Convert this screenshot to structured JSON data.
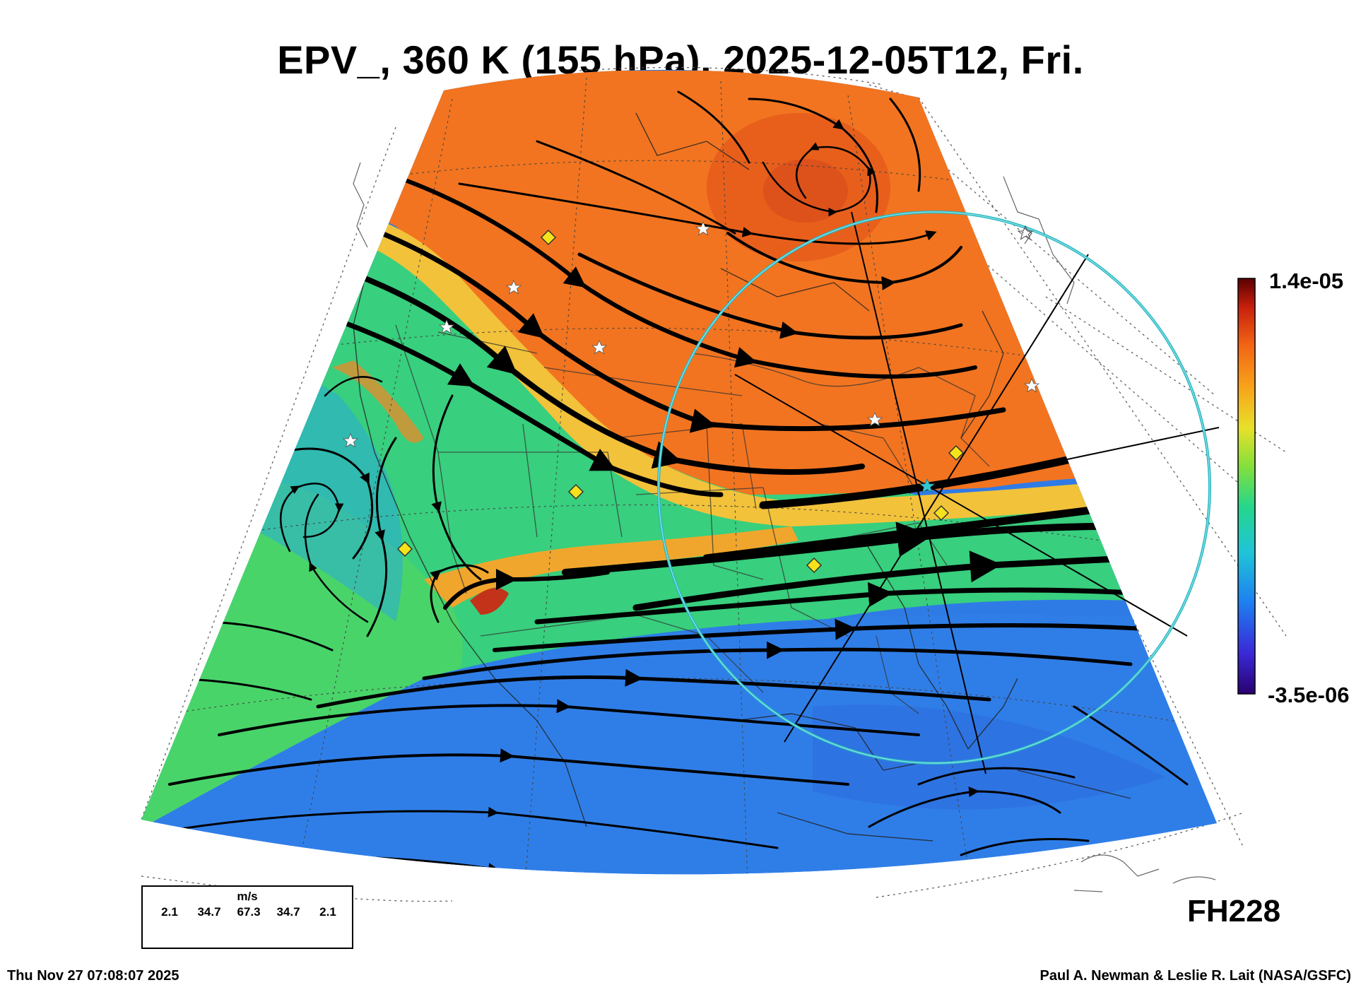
{
  "title": "EPV_, 360 K (155 hPa), 2025-12-05T12, Fri.",
  "colorbar": {
    "max_label": "1.4e-05",
    "min_label": "-3.5e-06",
    "colors": [
      "#2a0070",
      "#3a2ad8",
      "#1e7ff0",
      "#1fc4d8",
      "#25d68c",
      "#86e03a",
      "#e8e02a",
      "#f8a21a",
      "#f26414",
      "#c8200c",
      "#5a0000"
    ]
  },
  "forecast_hour": "FH228",
  "wind_legend": {
    "units": "m/s",
    "speeds": [
      "2.1",
      "34.7",
      "67.3",
      "34.7",
      "2.1"
    ]
  },
  "timestamp": "Thu Nov 27 07:08:07 2025",
  "credit": "Paul A. Newman & Leslie R. Lait (NASA/GSFC)",
  "map": {
    "field": "EPV_",
    "isentropic_level": "360 K",
    "pressure": "155 hPa",
    "valid_time": "2025-12-05T12",
    "fill_colors": {
      "high_pv": "#f27420",
      "jet_band": "#f4c63a",
      "mid_pv": "#3fd07a",
      "low_pv": "#2a8ae8",
      "low_pv_deep": "#2f6fe0"
    },
    "markers": {
      "star_color": "#ffffff",
      "diamond_color": "#f6e21a",
      "circle_color": "#36c8d0"
    }
  }
}
